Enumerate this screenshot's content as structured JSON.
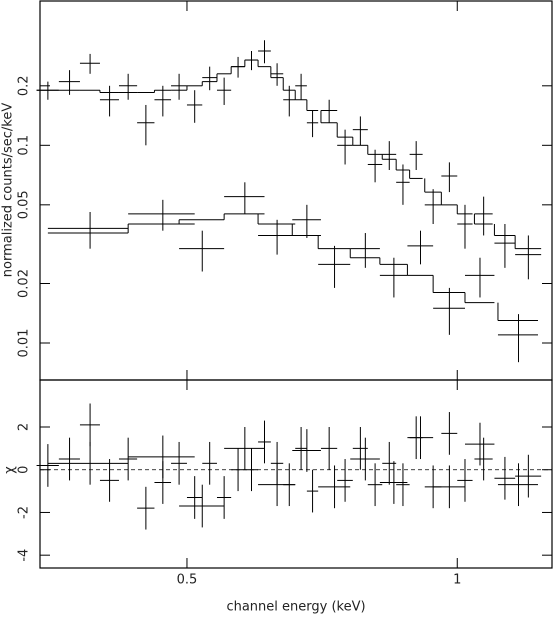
{
  "chart_data": [
    {
      "type": "errorbar",
      "ylabel": "normalized counts/sec/keV",
      "xlog": true,
      "ylog": true,
      "xlim": [
        0.343,
        1.275
      ],
      "ylim": [
        0.0065,
        0.537
      ],
      "xticks": [
        0.5,
        1
      ],
      "yticks": [
        0.01,
        0.02,
        0.05,
        0.1,
        0.2
      ],
      "series": [
        {
          "color": "#000000",
          "x": [
            0.35,
            0.37,
            0.39,
            0.41,
            0.43,
            0.45,
            0.47,
            0.49,
            0.51,
            0.53,
            0.55,
            0.57,
            0.59,
            0.61,
            0.63,
            0.65,
            0.67,
            0.69,
            0.72,
            0.75,
            0.78,
            0.81,
            0.84,
            0.87,
            0.9,
            0.94,
            0.98,
            1.02,
            1.07,
            1.13,
            1.2
          ],
          "xerr": [
            0.01,
            0.01,
            0.01,
            0.01,
            0.01,
            0.01,
            0.01,
            0.01,
            0.01,
            0.01,
            0.01,
            0.01,
            0.01,
            0.01,
            0.01,
            0.01,
            0.01,
            0.01,
            0.015,
            0.015,
            0.015,
            0.015,
            0.015,
            0.015,
            0.015,
            0.02,
            0.02,
            0.02,
            0.025,
            0.03,
            0.04
          ],
          "values": [
            0.19,
            0.21,
            0.26,
            0.17,
            0.2,
            0.13,
            0.17,
            0.2,
            0.16,
            0.22,
            0.19,
            0.25,
            0.27,
            0.3,
            0.23,
            0.17,
            0.2,
            0.13,
            0.15,
            0.1,
            0.12,
            0.08,
            0.09,
            0.065,
            0.09,
            0.05,
            0.07,
            0.04,
            0.045,
            0.032,
            0.028
          ],
          "errors": [
            0.02,
            0.03,
            0.03,
            0.03,
            0.03,
            0.03,
            0.03,
            0.03,
            0.03,
            0.03,
            0.03,
            0.03,
            0.03,
            0.04,
            0.03,
            0.03,
            0.03,
            0.02,
            0.02,
            0.02,
            0.02,
            0.015,
            0.015,
            0.015,
            0.015,
            0.01,
            0.012,
            0.01,
            0.01,
            0.008,
            0.007
          ],
          "model": [
            0.19,
            0.19,
            0.19,
            0.185,
            0.185,
            0.185,
            0.19,
            0.19,
            0.2,
            0.21,
            0.23,
            0.25,
            0.27,
            0.25,
            0.22,
            0.19,
            0.17,
            0.15,
            0.13,
            0.11,
            0.1,
            0.09,
            0.085,
            0.075,
            0.068,
            0.058,
            0.05,
            0.045,
            0.04,
            0.035,
            0.03
          ]
        },
        {
          "color": "#000000",
          "x": [
            0.39,
            0.47,
            0.52,
            0.58,
            0.63,
            0.68,
            0.73,
            0.79,
            0.85,
            0.91,
            0.98,
            1.06,
            1.17
          ],
          "xerr": [
            0.04,
            0.04,
            0.03,
            0.03,
            0.03,
            0.025,
            0.03,
            0.03,
            0.03,
            0.03,
            0.04,
            0.04,
            0.06
          ],
          "values": [
            0.038,
            0.045,
            0.03,
            0.055,
            0.035,
            0.042,
            0.025,
            0.03,
            0.022,
            0.031,
            0.015,
            0.022,
            0.011
          ],
          "errors": [
            0.008,
            0.008,
            0.007,
            0.01,
            0.007,
            0.008,
            0.006,
            0.006,
            0.005,
            0.006,
            0.004,
            0.005,
            0.003
          ],
          "model": [
            0.036,
            0.04,
            0.042,
            0.045,
            0.04,
            0.035,
            0.03,
            0.027,
            0.025,
            0.022,
            0.018,
            0.016,
            0.013
          ]
        }
      ]
    },
    {
      "type": "residual",
      "xlabel": "channel energy (keV)",
      "ylabel": "χ",
      "xlog": true,
      "xlim": [
        0.343,
        1.275
      ],
      "ylim": [
        -4.6,
        4.2
      ],
      "xticks": [
        0.5,
        1
      ],
      "yticks": [
        -4,
        -2,
        0,
        2
      ],
      "series": [
        {
          "color": "#000000",
          "x": [
            0.35,
            0.37,
            0.39,
            0.41,
            0.43,
            0.45,
            0.47,
            0.49,
            0.51,
            0.53,
            0.55,
            0.57,
            0.59,
            0.61,
            0.63,
            0.65,
            0.67,
            0.69,
            0.72,
            0.75,
            0.78,
            0.81,
            0.84,
            0.87,
            0.9,
            0.94,
            0.98,
            1.02,
            1.07,
            1.13,
            1.2
          ],
          "xerr": [
            0.01,
            0.01,
            0.01,
            0.01,
            0.01,
            0.01,
            0.01,
            0.01,
            0.01,
            0.01,
            0.01,
            0.01,
            0.01,
            0.01,
            0.01,
            0.01,
            0.01,
            0.01,
            0.015,
            0.015,
            0.015,
            0.015,
            0.015,
            0.015,
            0.015,
            0.02,
            0.02,
            0.02,
            0.025,
            0.03,
            0.04
          ],
          "values": [
            0.2,
            0.5,
            2.1,
            -0.5,
            0.5,
            -1.8,
            -0.6,
            0.3,
            -1.3,
            0.3,
            -1.3,
            0,
            0,
            1.3,
            0.3,
            -0.7,
            1,
            -1,
            1,
            -0.5,
            1,
            -0.7,
            0.3,
            -0.7,
            1.5,
            -0.8,
            1.7,
            -0.5,
            0.5,
            -0.4,
            -0.3
          ],
          "errors": [
            1,
            1,
            1,
            1,
            1,
            1,
            1,
            1,
            1,
            1,
            1,
            1,
            1,
            1,
            1,
            1,
            1,
            1,
            1,
            1,
            1,
            1,
            1,
            1,
            1,
            1,
            1,
            1,
            1,
            1,
            1
          ]
        },
        {
          "color": "#000000",
          "x": [
            0.39,
            0.47,
            0.52,
            0.58,
            0.63,
            0.68,
            0.73,
            0.79,
            0.85,
            0.91,
            0.98,
            1.06,
            1.17
          ],
          "xerr": [
            0.04,
            0.04,
            0.03,
            0.03,
            0.03,
            0.025,
            0.03,
            0.03,
            0.03,
            0.03,
            0.04,
            0.04,
            0.06
          ],
          "values": [
            0.3,
            0.6,
            -1.7,
            1,
            -0.7,
            0.9,
            -0.8,
            0.5,
            -0.6,
            1.5,
            -0.8,
            1.2,
            -0.7
          ],
          "errors": [
            1,
            1,
            1,
            1,
            1,
            1,
            1,
            1,
            1,
            1,
            1,
            1,
            1
          ]
        }
      ]
    }
  ]
}
